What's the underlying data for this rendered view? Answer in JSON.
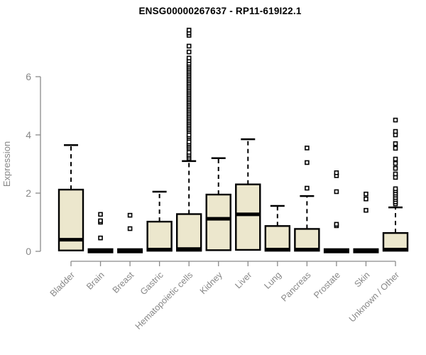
{
  "title": "ENSG00000267637 - RP11-619I22.1",
  "y_axis": {
    "label": "Expression",
    "ticks": [
      "0",
      "2",
      "4",
      "6"
    ]
  },
  "chart_data": {
    "type": "boxplot",
    "title": "ENSG00000267637 - RP11-619I22.1",
    "xlabel": "",
    "ylabel": "Expression",
    "ylim": [
      -0.15,
      7.8
    ],
    "y_ticks": [
      0,
      2,
      4,
      6
    ],
    "grid": false,
    "legend": "none",
    "box_fill_color": "#ece7cd",
    "box_border_color": "#000000",
    "median_color": "#000000",
    "axis_color": "#8a8a8a",
    "tick_label_color": "#878787",
    "categories": [
      "Bladder",
      "Brain",
      "Breast",
      "Gastric",
      "Hematopoietic cells",
      "Kidney",
      "Liver",
      "Lung",
      "Pancreas",
      "Prostate",
      "Skin",
      "Unknown / Other"
    ],
    "boxes": [
      {
        "category": "Bladder",
        "whisker_low": 0,
        "q1": 0.03,
        "median": 0.4,
        "q3": 2.12,
        "whisker_high": 3.65,
        "outliers": []
      },
      {
        "category": "Brain",
        "whisker_low": 0,
        "q1": 0.0,
        "median": 0.02,
        "q3": 0.05,
        "whisker_high": 0.05,
        "outliers": [
          0.46,
          1.0,
          1.05,
          1.27
        ]
      },
      {
        "category": "Breast",
        "whisker_low": 0,
        "q1": 0.0,
        "median": 0.02,
        "q3": 0.05,
        "whisker_high": 0.05,
        "outliers": [
          0.78,
          1.24
        ]
      },
      {
        "category": "Gastric",
        "whisker_low": 0,
        "q1": 0.02,
        "median": 0.06,
        "q3": 1.02,
        "whisker_high": 2.05,
        "outliers": []
      },
      {
        "category": "Hematopoietic cells",
        "whisker_low": 0,
        "q1": 0.02,
        "median": 0.08,
        "q3": 1.28,
        "whisker_high": 3.1,
        "outliers": [
          3.2,
          3.27,
          3.33,
          3.4,
          3.52,
          3.58,
          3.64,
          3.7,
          3.76,
          3.88,
          3.94,
          4.0,
          4.12,
          4.18,
          4.24,
          4.3,
          4.36,
          4.42,
          4.48,
          4.54,
          4.6,
          4.66,
          4.72,
          4.78,
          4.84,
          4.9,
          4.96,
          5.02,
          5.08,
          5.14,
          5.2,
          5.26,
          5.32,
          5.38,
          5.44,
          5.5,
          5.56,
          5.62,
          5.68,
          5.74,
          5.8,
          5.86,
          5.92,
          5.98,
          6.04,
          6.1,
          6.16,
          6.22,
          6.28,
          6.34,
          6.4,
          6.46,
          6.55,
          6.64,
          6.85,
          7.05,
          7.42,
          7.5,
          7.6
        ]
      },
      {
        "category": "Kidney",
        "whisker_low": 0,
        "q1": 0.04,
        "median": 1.12,
        "q3": 1.95,
        "whisker_high": 3.2,
        "outliers": []
      },
      {
        "category": "Liver",
        "whisker_low": 0,
        "q1": 0.05,
        "median": 1.27,
        "q3": 2.3,
        "whisker_high": 3.85,
        "outliers": []
      },
      {
        "category": "Lung",
        "whisker_low": 0,
        "q1": 0.02,
        "median": 0.06,
        "q3": 0.87,
        "whisker_high": 1.56,
        "outliers": []
      },
      {
        "category": "Pancreas",
        "whisker_low": 0,
        "q1": 0.02,
        "median": 0.06,
        "q3": 0.77,
        "whisker_high": 1.9,
        "outliers": [
          2.17,
          3.05,
          3.55
        ]
      },
      {
        "category": "Prostate",
        "whisker_low": 0,
        "q1": 0.0,
        "median": 0.02,
        "q3": 0.05,
        "whisker_high": 0.05,
        "outliers": [
          0.88,
          0.93,
          2.05,
          2.6,
          2.7
        ]
      },
      {
        "category": "Skin",
        "whisker_low": 0,
        "q1": 0.0,
        "median": 0.02,
        "q3": 0.05,
        "whisker_high": 0.05,
        "outliers": [
          1.41,
          1.8,
          1.97
        ]
      },
      {
        "category": "Unknown / Other",
        "whisker_low": 0,
        "q1": 0.02,
        "median": 0.06,
        "q3": 0.63,
        "whisker_high": 1.51,
        "outliers": [
          1.63,
          1.7,
          1.78,
          1.85,
          1.93,
          2.0,
          2.08,
          2.15,
          2.54,
          2.66,
          2.85,
          3.02,
          3.17,
          3.54,
          3.7,
          4.0,
          4.12,
          4.51
        ]
      }
    ]
  }
}
